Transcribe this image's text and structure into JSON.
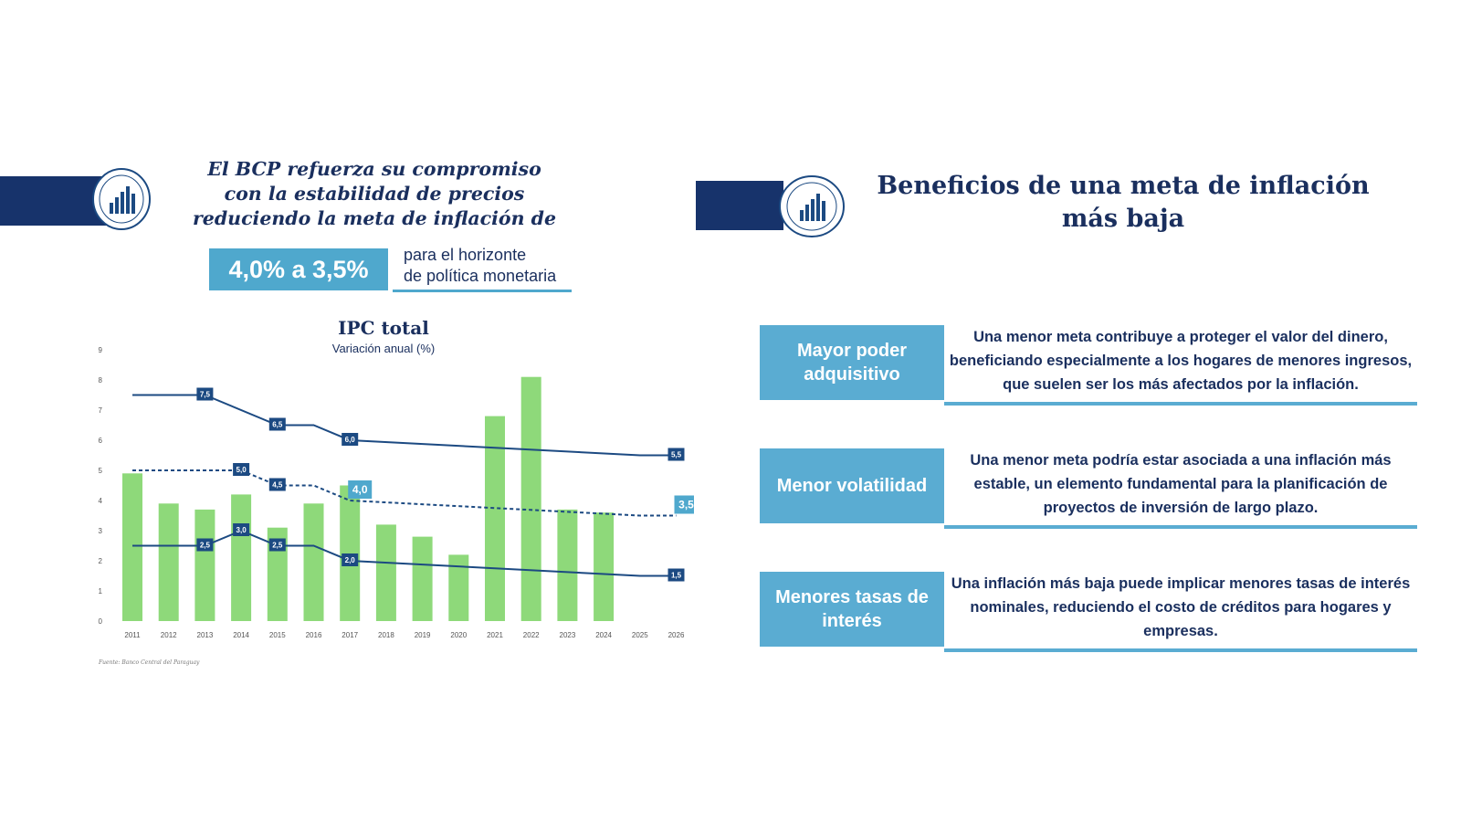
{
  "left_panel": {
    "title_lines": [
      "El BCP refuerza su compromiso",
      "con la estabilidad de precios",
      "reduciendo la meta de inflación de"
    ],
    "target_change": "4,0% a 3,5%",
    "horizon_lines": [
      "para el horizonte",
      "de política monetaria"
    ]
  },
  "right_panel": {
    "title_lines": [
      "Beneficios de una meta de inflación",
      "más baja"
    ],
    "benefits": [
      {
        "label": "Mayor poder adquisitivo",
        "text": "Una menor meta contribuye a proteger el valor del dinero, beneficiando especialmente a los hogares de menores ingresos, que suelen ser los más afectados por la inflación."
      },
      {
        "label": "Menor volatilidad",
        "text": "Una menor meta podría estar asociada a una inflación más estable, un elemento fundamental para la planificación de proyectos de inversión de largo plazo."
      },
      {
        "label": "Menores tasas de interés",
        "text": "Una inflación más baja puede implicar  menores tasas de interés nominales, reduciendo el costo de créditos para hogares y empresas."
      }
    ]
  },
  "colors": {
    "navy": "#17336b",
    "accent_blue": "#4fa8cd",
    "bar_green": "#8ed97a",
    "line_navy": "#1c4a82"
  },
  "chart_data": {
    "type": "bar",
    "title": "IPC total",
    "subtitle": "Variación anual (%)",
    "source": "Fuente: Banco Central del Paraguay",
    "x": [
      "2011",
      "2012",
      "2013",
      "2014",
      "2015",
      "2016",
      "2017",
      "2018",
      "2019",
      "2020",
      "2021",
      "2022",
      "2023",
      "2024",
      "2025",
      "2026"
    ],
    "ylim": [
      0,
      9
    ],
    "yticks": [
      0,
      1,
      2,
      3,
      4,
      5,
      6,
      7,
      8,
      9
    ],
    "grid": false,
    "bars": [
      4.9,
      3.9,
      3.7,
      4.2,
      3.1,
      3.9,
      4.5,
      3.2,
      2.8,
      2.2,
      6.8,
      8.1,
      3.7,
      3.6,
      null,
      null
    ],
    "lines": [
      {
        "style": "solid",
        "points": [
          [
            2011,
            7.5
          ],
          [
            2013,
            7.5
          ],
          [
            2015,
            6.5
          ],
          [
            2016,
            6.5
          ],
          [
            2017,
            6.0
          ],
          [
            2025,
            5.5
          ],
          [
            2026,
            5.5
          ]
        ],
        "labels": [
          {
            "x": 2013,
            "y": 7.5,
            "text": "7,5"
          },
          {
            "x": 2015,
            "y": 6.5,
            "text": "6,5"
          },
          {
            "x": 2017,
            "y": 6.0,
            "text": "6,0"
          },
          {
            "x": 2026,
            "y": 5.5,
            "text": "5,5"
          }
        ]
      },
      {
        "style": "dashed",
        "points": [
          [
            2011,
            5.0
          ],
          [
            2014,
            5.0
          ],
          [
            2015,
            4.5
          ],
          [
            2016,
            4.5
          ],
          [
            2017,
            4.0
          ],
          [
            2025,
            3.5
          ],
          [
            2026,
            3.5
          ]
        ],
        "labels": [
          {
            "x": 2014,
            "y": 5.0,
            "text": "5,0"
          },
          {
            "x": 2015,
            "y": 4.5,
            "text": "4,5"
          }
        ]
      },
      {
        "style": "solid",
        "points": [
          [
            2011,
            2.5
          ],
          [
            2013,
            2.5
          ],
          [
            2014,
            3.0
          ],
          [
            2015,
            2.5
          ],
          [
            2016,
            2.5
          ],
          [
            2017,
            2.0
          ],
          [
            2025,
            1.5
          ],
          [
            2026,
            1.5
          ]
        ],
        "labels": [
          {
            "x": 2013,
            "y": 2.5,
            "text": "2,5"
          },
          {
            "x": 2014,
            "y": 3.0,
            "text": "3,0"
          },
          {
            "x": 2015,
            "y": 2.5,
            "text": "2,5"
          },
          {
            "x": 2017,
            "y": 2.0,
            "text": "2,0"
          },
          {
            "x": 2026,
            "y": 1.5,
            "text": "1,5"
          }
        ]
      }
    ],
    "highlight_labels": [
      {
        "x": 2017,
        "y": 4.0,
        "text": "4,0"
      },
      {
        "x": 2026,
        "y": 3.5,
        "text": "3,5"
      }
    ]
  }
}
